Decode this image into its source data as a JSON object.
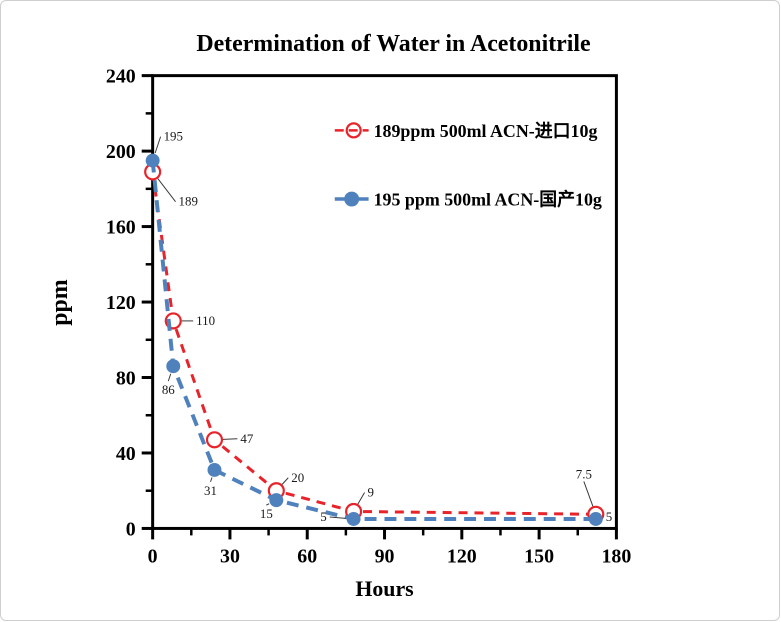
{
  "window": {
    "background": "#ffffff",
    "border_color": "#cfcfcf"
  },
  "chart_data": {
    "type": "line",
    "title": "Determination of Water in Acetonitrile",
    "xlabel": "Hours",
    "ylabel": "ppm",
    "xlim": [
      0,
      180
    ],
    "ylim": [
      0,
      240
    ],
    "x_major_ticks": [
      0,
      30,
      60,
      90,
      120,
      150,
      180
    ],
    "x_minor_step": 15,
    "y_major_ticks": [
      0,
      40,
      80,
      120,
      160,
      200,
      240
    ],
    "y_minor_step": 20,
    "grid": false,
    "axis_color": "#000000",
    "legend_position": "inside-top-right",
    "series": [
      {
        "name": "189ppm  500ml ACN-进口10g",
        "color": "#e8232a",
        "line_style": "dashed",
        "marker": "open-circle",
        "points": [
          {
            "x": 0,
            "y": 189,
            "label": "189",
            "label_dx": 26,
            "label_dy": 34,
            "label_anchor": "start"
          },
          {
            "x": 8,
            "y": 110,
            "label": "110",
            "label_dx": 23,
            "label_dy": 4,
            "label_anchor": "start"
          },
          {
            "x": 24,
            "y": 47,
            "label": "47",
            "label_dx": 26,
            "label_dy": 3,
            "label_anchor": "start"
          },
          {
            "x": 48,
            "y": 20,
            "label": "20",
            "label_dx": 15,
            "label_dy": -9,
            "label_anchor": "start"
          },
          {
            "x": 78,
            "y": 9,
            "label": "9",
            "label_dx": 14,
            "label_dy": -15,
            "label_anchor": "start"
          },
          {
            "x": 172,
            "y": 7.5,
            "label": "7.5",
            "label_dx": -12,
            "label_dy": -36,
            "label_anchor": "middle"
          }
        ]
      },
      {
        "name": "195 ppm 500ml ACN-国产10g",
        "color": "#4f81bd",
        "line_style": "dashed",
        "marker": "filled-circle",
        "points": [
          {
            "x": 0,
            "y": 195,
            "label": "195",
            "label_dx": 11,
            "label_dy": -20,
            "label_anchor": "start"
          },
          {
            "x": 8,
            "y": 86,
            "label": "86",
            "label_dx": -5,
            "label_dy": 28,
            "label_anchor": "middle"
          },
          {
            "x": 24,
            "y": 31,
            "label": "31",
            "label_dx": -4,
            "label_dy": 25,
            "label_anchor": "middle"
          },
          {
            "x": 48,
            "y": 15,
            "label": "15",
            "label_dx": -10,
            "label_dy": 18,
            "label_anchor": "middle"
          },
          {
            "x": 78,
            "y": 5,
            "label": "5",
            "label_dx": -27,
            "label_dy": 2,
            "label_anchor": "end"
          },
          {
            "x": 172,
            "y": 5,
            "label": "5",
            "label_dx": 10,
            "label_dy": 2,
            "label_anchor": "start"
          }
        ]
      }
    ]
  }
}
